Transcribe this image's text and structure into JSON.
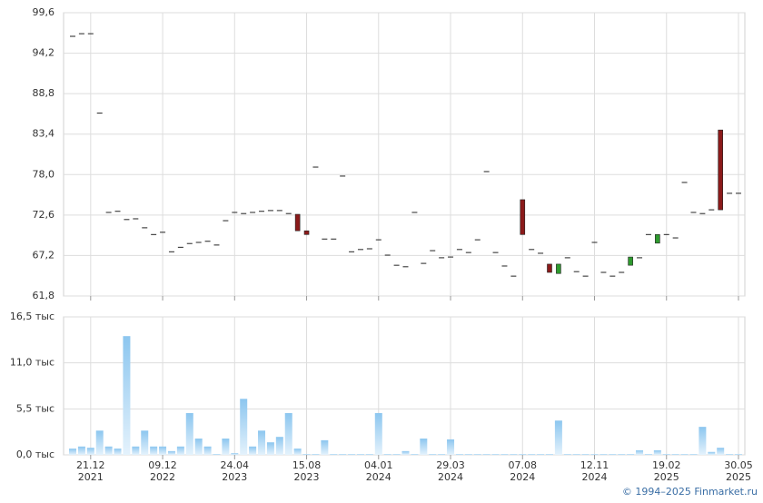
{
  "chart_data": {
    "type": "candlestick-volume",
    "categories": [
      null,
      null,
      [
        "21.12",
        "2021"
      ],
      null,
      null,
      null,
      null,
      null,
      null,
      null,
      [
        "09.12",
        "2022"
      ],
      null,
      null,
      null,
      null,
      null,
      null,
      null,
      [
        "24.04",
        "2023"
      ],
      null,
      null,
      null,
      null,
      null,
      null,
      null,
      [
        "15.08",
        "2023"
      ],
      null,
      null,
      null,
      null,
      null,
      null,
      null,
      [
        "04.01",
        "2024"
      ],
      null,
      null,
      null,
      null,
      null,
      null,
      null,
      [
        "29.03",
        "2024"
      ],
      null,
      null,
      null,
      null,
      null,
      null,
      null,
      [
        "07.08",
        "2024"
      ],
      null,
      null,
      null,
      null,
      null,
      null,
      null,
      [
        "12.11",
        "2024"
      ],
      null,
      null,
      null,
      null,
      null,
      null,
      null,
      [
        "19.02",
        "2025"
      ],
      null,
      null,
      null,
      null,
      null,
      null,
      null,
      [
        "30.05",
        "2025"
      ]
    ],
    "open": [
      96.45,
      96.8,
      96.8,
      86.2,
      72.95,
      73.1,
      72.0,
      72.1,
      70.9,
      70.0,
      70.3,
      67.7,
      68.3,
      68.8,
      68.95,
      69.1,
      68.6,
      71.85,
      72.95,
      72.8,
      72.95,
      73.1,
      73.2,
      73.2,
      72.8,
      72.7,
      70.5,
      79.0,
      69.4,
      69.4,
      77.8,
      67.7,
      68.0,
      68.1,
      69.3,
      67.25,
      65.9,
      65.7,
      72.95,
      66.15,
      67.85,
      66.9,
      67.0,
      68.0,
      67.6,
      69.3,
      78.4,
      67.6,
      65.8,
      64.45,
      74.65,
      68.0,
      67.5,
      66.05,
      64.8,
      66.9,
      65.05,
      64.45,
      68.95,
      64.95,
      64.45,
      64.95,
      65.9,
      66.9,
      70.0,
      68.85,
      70.0,
      69.55,
      76.95,
      72.95,
      72.8,
      73.3,
      83.95,
      75.5,
      75.5
    ],
    "close": [
      96.45,
      96.8,
      96.8,
      86.2,
      72.95,
      73.1,
      72.0,
      72.1,
      70.9,
      70.0,
      70.3,
      67.7,
      68.3,
      68.8,
      68.95,
      69.1,
      68.6,
      71.85,
      72.95,
      72.8,
      72.95,
      73.1,
      73.2,
      73.2,
      72.8,
      70.5,
      70.0,
      79.0,
      69.4,
      69.4,
      77.8,
      67.7,
      68.0,
      68.1,
      69.3,
      67.25,
      65.9,
      65.7,
      72.95,
      66.15,
      67.85,
      66.9,
      67.0,
      68.0,
      67.6,
      69.3,
      78.4,
      67.6,
      65.8,
      64.45,
      70.0,
      68.0,
      67.5,
      64.95,
      66.05,
      66.9,
      65.05,
      64.45,
      68.95,
      64.95,
      64.45,
      64.95,
      67.0,
      66.9,
      70.0,
      70.0,
      70.0,
      69.55,
      76.95,
      72.95,
      72.8,
      73.3,
      73.3,
      75.5,
      75.5
    ],
    "volume": [
      0.75,
      1.0,
      0.85,
      2.9,
      1.0,
      0.75,
      14.2,
      1.0,
      2.9,
      1.0,
      1.0,
      0.45,
      1.0,
      5.0,
      1.95,
      1.0,
      0.1,
      1.95,
      0.2,
      6.7,
      1.0,
      2.9,
      1.5,
      2.15,
      5.0,
      0.75,
      0.1,
      0.1,
      1.75,
      0.1,
      0.1,
      0.1,
      0.1,
      0.1,
      5.0,
      0.1,
      0.1,
      0.45,
      0.1,
      1.95,
      0.1,
      0.1,
      1.85,
      0.1,
      0.1,
      0.1,
      0.1,
      0.1,
      0.1,
      0.1,
      0.1,
      0.1,
      0.1,
      0.1,
      4.1,
      0.1,
      0.1,
      0.1,
      0.1,
      0.1,
      0.1,
      0.1,
      0.1,
      0.55,
      0.1,
      0.55,
      0.1,
      0.1,
      0.1,
      0.1,
      3.35,
      0.35,
      0.85,
      0.1,
      0.1
    ],
    "ylim": [
      61.8,
      99.6
    ],
    "yticks": [
      {
        "value": 61.8,
        "label": "61,8"
      },
      {
        "value": 67.2,
        "label": "67,2"
      },
      {
        "value": 72.6,
        "label": "72,6"
      },
      {
        "value": 78.0,
        "label": "78,0"
      },
      {
        "value": 83.4,
        "label": "83,4"
      },
      {
        "value": 88.8,
        "label": "88,8"
      },
      {
        "value": 94.2,
        "label": "94,2"
      },
      {
        "value": 99.6,
        "label": "99,6"
      }
    ],
    "y2lim": [
      0,
      16.5
    ],
    "y2ticks": [
      {
        "value": 0,
        "label": "0,0 тыс"
      },
      {
        "value": 5.5,
        "label": "5,5 тыс"
      },
      {
        "value": 11,
        "label": "11,0 тыс"
      },
      {
        "value": 16.5,
        "label": "16,5 тыс"
      }
    ],
    "up_color": "#2e9a2e",
    "down_color": "#8b1a1a",
    "flat_color": "#222222",
    "volume_color": "#8cc6ef",
    "grid": true,
    "footer": "© 1994–2025 Finmarket.ru"
  }
}
